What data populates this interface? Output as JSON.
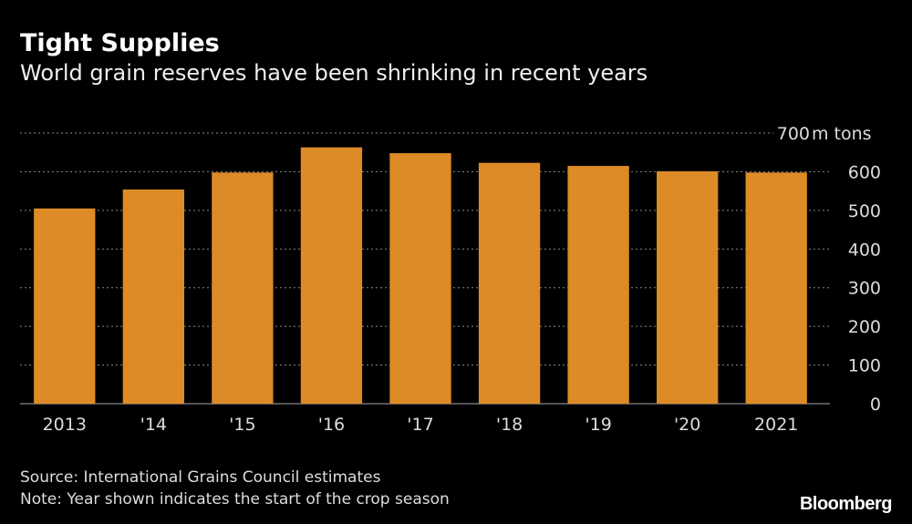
{
  "chart_data": {
    "type": "bar",
    "title": "Tight Supplies",
    "subtitle": "World grain reserves have been shrinking in recent years",
    "categories": [
      "2013",
      "'14",
      "'15",
      "'16",
      "'17",
      "'18",
      "'19",
      "'20",
      "2021"
    ],
    "values": [
      505,
      554,
      598,
      663,
      648,
      623,
      615,
      601,
      598
    ],
    "ylabel": "m tons",
    "ylim": [
      0,
      700
    ],
    "yticks": [
      0,
      100,
      200,
      300,
      400,
      500,
      600,
      700
    ],
    "grid": true,
    "bar_color": "#dd8b27"
  },
  "footer": {
    "source": "Source: International Grains Council estimates",
    "note": "Note: Year shown indicates the start of the crop season",
    "logo": "Bloomberg"
  }
}
